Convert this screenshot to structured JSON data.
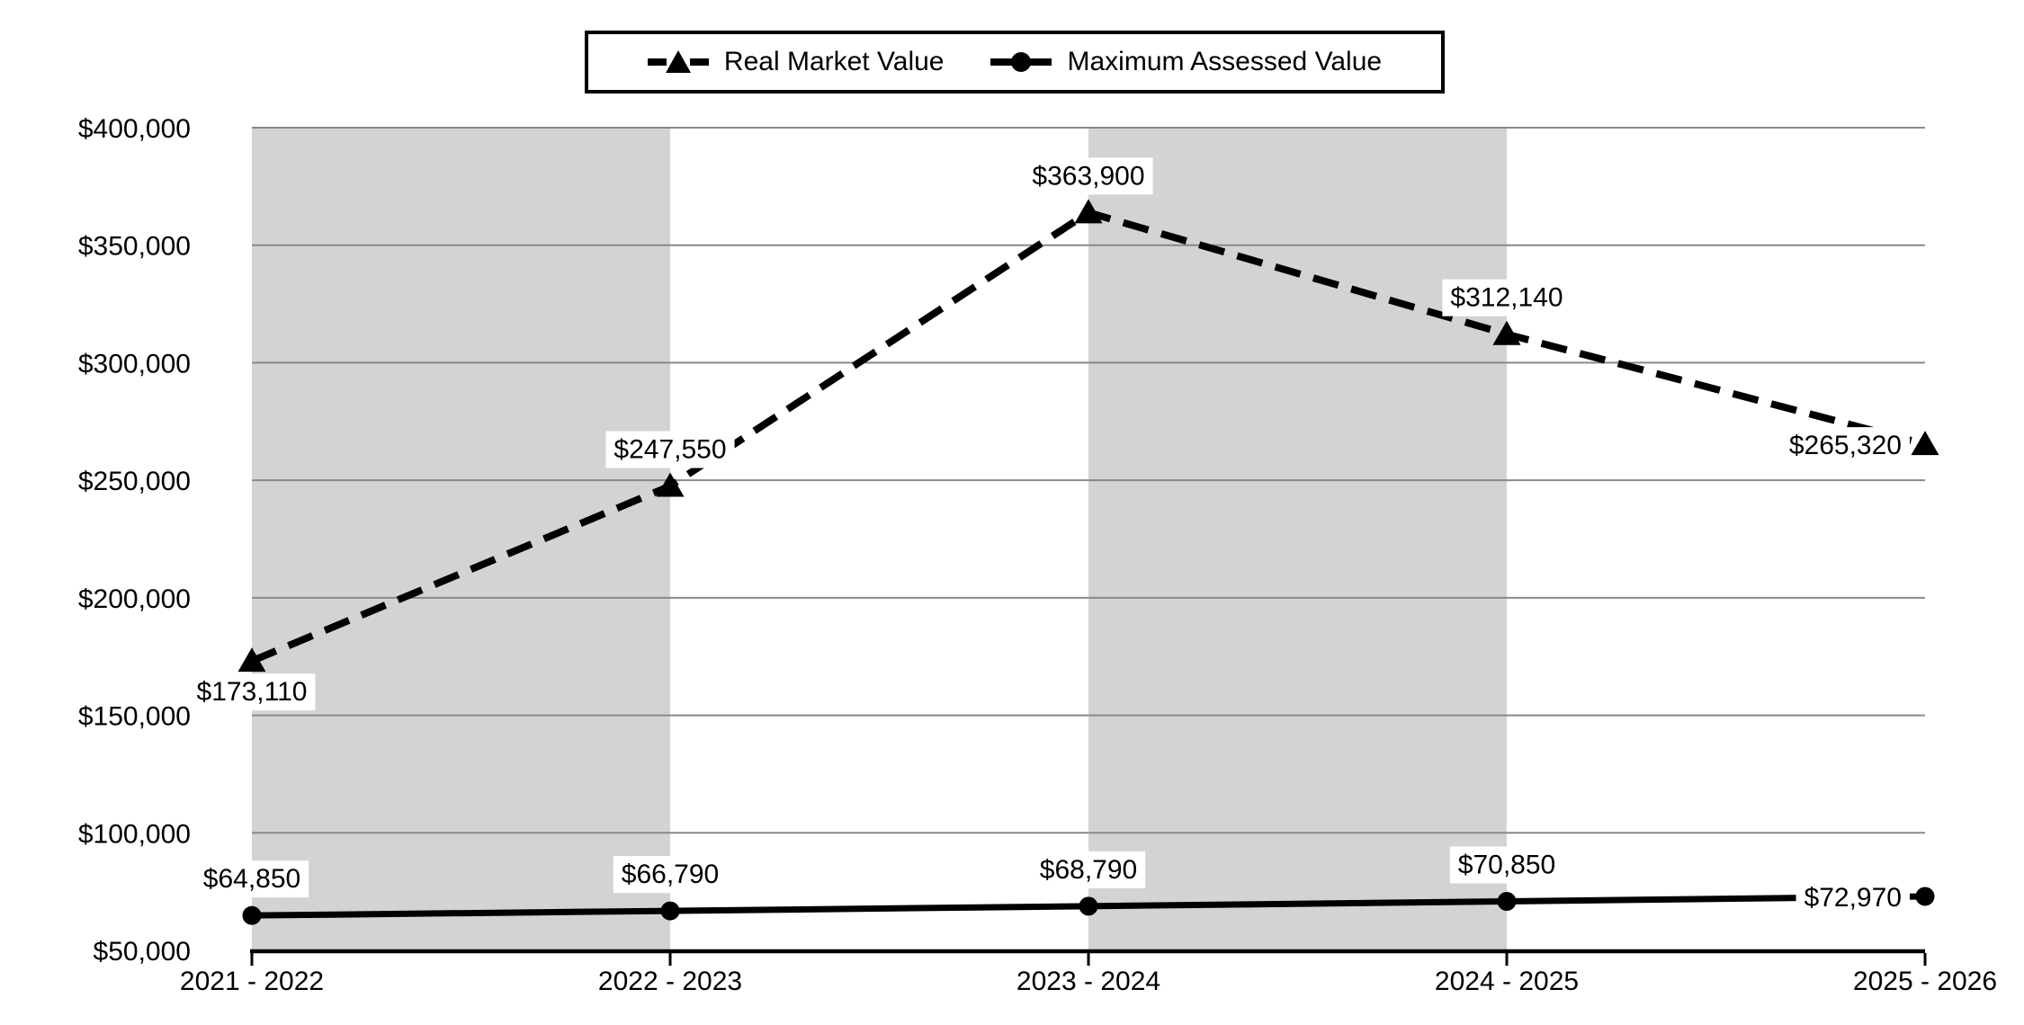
{
  "legend": {
    "entries": [
      {
        "label": "Real Market Value",
        "marker": "triangle",
        "line_style": "dashed"
      },
      {
        "label": "Maximum Assessed Value",
        "marker": "circle",
        "line_style": "solid"
      }
    ]
  },
  "chart_data": {
    "type": "line",
    "title": "",
    "xlabel": "",
    "ylabel": "",
    "categories": [
      "2021 - 2022",
      "2022 - 2023",
      "2023 - 2024",
      "2024 - 2025",
      "2025 - 2026"
    ],
    "series": [
      {
        "name": "Real Market Value",
        "values": [
          173110,
          247550,
          363900,
          312140,
          265320
        ],
        "labels": [
          "$173,110",
          "$247,550",
          "$363,900",
          "$312,140",
          "$265,320"
        ],
        "label_placement": [
          "below",
          "above",
          "above",
          "above",
          "left"
        ],
        "marker": "triangle",
        "line_style": "dashed",
        "color": "#000000"
      },
      {
        "name": "Maximum Assessed Value",
        "values": [
          64850,
          66790,
          68790,
          70850,
          72970
        ],
        "labels": [
          "$64,850",
          "$66,790",
          "$68,790",
          "$70,850",
          "$72,970"
        ],
        "label_placement": [
          "above",
          "above",
          "above",
          "above",
          "left"
        ],
        "marker": "circle",
        "line_style": "solid",
        "color": "#000000"
      }
    ],
    "y_axis": {
      "min": 50000,
      "max": 400000,
      "step": 50000,
      "tick_labels": [
        "$50,000",
        "$100,000",
        "$150,000",
        "$200,000",
        "$250,000",
        "$300,000",
        "$350,000",
        "$400,000"
      ]
    },
    "grid": true,
    "gridline_color": "#898989",
    "axis_color": "#000000",
    "plot_bands": {
      "color": "#d3d3d3",
      "column_pairs": [
        [
          0,
          1
        ],
        [
          2,
          3
        ]
      ]
    },
    "legend_position": "top-center",
    "background": "#ffffff",
    "label_box_color": "#ffffff",
    "text_color": "#000000"
  }
}
